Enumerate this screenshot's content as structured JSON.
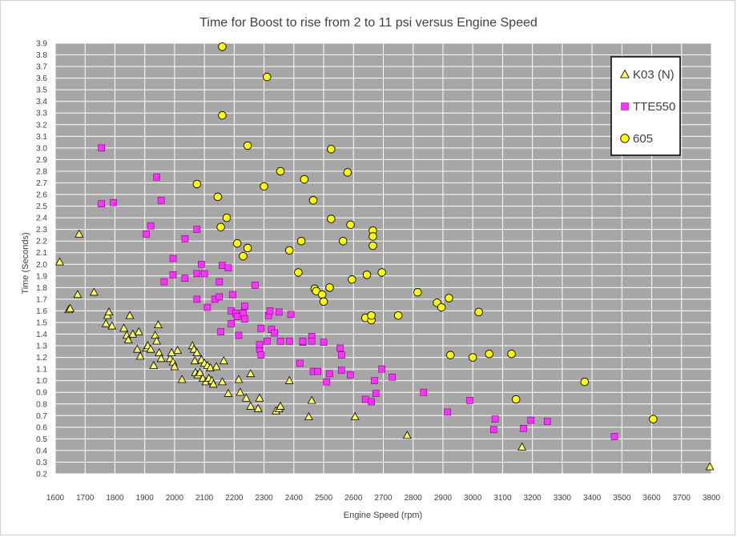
{
  "chart_data": {
    "type": "scatter",
    "title": "Time for Boost to rise from 2 to 11 psi versus Engine Speed",
    "xlabel": "Engine Speed (rpm)",
    "ylabel": "Time (Seconds)",
    "xlim": [
      1600,
      3800
    ],
    "ylim": [
      0.2,
      3.9
    ],
    "xtick_step": 100,
    "ytick_step": 0.1,
    "grid": true,
    "legend_position": "top-right",
    "colors": {
      "plot_background": "#a6a6a6",
      "grid": "#ffffff",
      "marker_outline": "#000000"
    },
    "series": [
      {
        "name": "K03 (N)",
        "marker": "triangle",
        "color": "#ffff66",
        "points": [
          [
            1615,
            2.02
          ],
          [
            1645,
            1.61
          ],
          [
            1650,
            1.62
          ],
          [
            1675,
            1.74
          ],
          [
            1680,
            2.26
          ],
          [
            1730,
            1.76
          ],
          [
            1770,
            1.49
          ],
          [
            1775,
            1.56
          ],
          [
            1780,
            1.59
          ],
          [
            1790,
            1.47
          ],
          [
            1830,
            1.45
          ],
          [
            1840,
            1.39
          ],
          [
            1845,
            1.35
          ],
          [
            1850,
            1.56
          ],
          [
            1860,
            1.4
          ],
          [
            1875,
            1.27
          ],
          [
            1880,
            1.42
          ],
          [
            1885,
            1.21
          ],
          [
            1905,
            1.28
          ],
          [
            1910,
            1.3
          ],
          [
            1920,
            1.27
          ],
          [
            1930,
            1.13
          ],
          [
            1935,
            1.39
          ],
          [
            1940,
            1.34
          ],
          [
            1945,
            1.48
          ],
          [
            1948,
            1.24
          ],
          [
            1955,
            1.19
          ],
          [
            1985,
            1.19
          ],
          [
            1990,
            1.24
          ],
          [
            1995,
            1.16
          ],
          [
            2000,
            1.12
          ],
          [
            2010,
            1.26
          ],
          [
            2025,
            1.01
          ],
          [
            2060,
            1.3
          ],
          [
            2065,
            1.27
          ],
          [
            2068,
            1.17
          ],
          [
            2070,
            1.07
          ],
          [
            2075,
            1.24
          ],
          [
            2078,
            1.05
          ],
          [
            2085,
            1.07
          ],
          [
            2090,
            1.18
          ],
          [
            2095,
            1.02
          ],
          [
            2100,
            1.15
          ],
          [
            2105,
            0.99
          ],
          [
            2110,
            1.13
          ],
          [
            2115,
            1.02
          ],
          [
            2120,
            1.11
          ],
          [
            2125,
            1.0
          ],
          [
            2130,
            0.97
          ],
          [
            2140,
            1.12
          ],
          [
            2160,
            0.99
          ],
          [
            2165,
            1.17
          ],
          [
            2180,
            0.89
          ],
          [
            2215,
            1.01
          ],
          [
            2220,
            0.9
          ],
          [
            2240,
            0.85
          ],
          [
            2255,
            1.06
          ],
          [
            2255,
            0.78
          ],
          [
            2280,
            0.76
          ],
          [
            2285,
            0.85
          ],
          [
            2340,
            0.74
          ],
          [
            2350,
            0.76
          ],
          [
            2355,
            0.78
          ],
          [
            2385,
            1.0
          ],
          [
            2450,
            0.69
          ],
          [
            2460,
            0.83
          ],
          [
            2605,
            0.69
          ],
          [
            2780,
            0.53
          ],
          [
            3165,
            0.43
          ],
          [
            3795,
            0.26
          ]
        ]
      },
      {
        "name": "TTE550",
        "marker": "square",
        "color": "#ff33ff",
        "points": [
          [
            1755,
            3.0
          ],
          [
            1755,
            2.52
          ],
          [
            1795,
            2.53
          ],
          [
            1905,
            2.26
          ],
          [
            1920,
            2.33
          ],
          [
            1940,
            2.75
          ],
          [
            1955,
            2.55
          ],
          [
            1965,
            1.85
          ],
          [
            1995,
            1.91
          ],
          [
            1995,
            2.05
          ],
          [
            2035,
            2.22
          ],
          [
            2035,
            1.88
          ],
          [
            2075,
            2.3
          ],
          [
            2075,
            1.92
          ],
          [
            2075,
            1.7
          ],
          [
            2090,
            2.0
          ],
          [
            2100,
            1.92
          ],
          [
            2110,
            1.63
          ],
          [
            2135,
            1.7
          ],
          [
            2150,
            1.72
          ],
          [
            2150,
            1.85
          ],
          [
            2155,
            1.42
          ],
          [
            2160,
            1.99
          ],
          [
            2180,
            1.97
          ],
          [
            2190,
            1.6
          ],
          [
            2190,
            1.49
          ],
          [
            2195,
            1.74
          ],
          [
            2205,
            1.58
          ],
          [
            2210,
            1.55
          ],
          [
            2215,
            1.39
          ],
          [
            2230,
            1.58
          ],
          [
            2235,
            1.64
          ],
          [
            2235,
            1.53
          ],
          [
            2270,
            1.82
          ],
          [
            2285,
            1.27
          ],
          [
            2285,
            1.31
          ],
          [
            2290,
            1.45
          ],
          [
            2290,
            1.22
          ],
          [
            2310,
            1.34
          ],
          [
            2315,
            1.56
          ],
          [
            2320,
            1.6
          ],
          [
            2325,
            1.44
          ],
          [
            2335,
            1.41
          ],
          [
            2350,
            1.59
          ],
          [
            2355,
            1.34
          ],
          [
            2385,
            1.34
          ],
          [
            2390,
            1.57
          ],
          [
            2420,
            1.15
          ],
          [
            2430,
            1.33
          ],
          [
            2430,
            1.34
          ],
          [
            2460,
            1.38
          ],
          [
            2460,
            1.34
          ],
          [
            2465,
            1.08
          ],
          [
            2480,
            1.08
          ],
          [
            2500,
            1.33
          ],
          [
            2510,
            0.99
          ],
          [
            2520,
            1.06
          ],
          [
            2555,
            1.28
          ],
          [
            2560,
            1.22
          ],
          [
            2560,
            1.09
          ],
          [
            2590,
            1.05
          ],
          [
            2640,
            0.84
          ],
          [
            2660,
            0.82
          ],
          [
            2670,
            1.0
          ],
          [
            2675,
            0.89
          ],
          [
            2695,
            1.1
          ],
          [
            2730,
            1.03
          ],
          [
            2835,
            0.9
          ],
          [
            2915,
            0.73
          ],
          [
            2990,
            0.83
          ],
          [
            3070,
            0.58
          ],
          [
            3075,
            0.67
          ],
          [
            3170,
            0.59
          ],
          [
            3195,
            0.66
          ],
          [
            3250,
            0.65
          ],
          [
            3475,
            0.52
          ]
        ]
      },
      {
        "name": "605",
        "marker": "circle",
        "color": "#ffff00",
        "points": [
          [
            2160,
            3.87
          ],
          [
            2310,
            3.61
          ],
          [
            2160,
            3.28
          ],
          [
            2245,
            3.02
          ],
          [
            2525,
            2.99
          ],
          [
            2355,
            2.8
          ],
          [
            2580,
            2.79
          ],
          [
            2435,
            2.73
          ],
          [
            2075,
            2.69
          ],
          [
            2300,
            2.67
          ],
          [
            2145,
            2.58
          ],
          [
            2465,
            2.55
          ],
          [
            2175,
            2.4
          ],
          [
            2525,
            2.39
          ],
          [
            2155,
            2.32
          ],
          [
            2590,
            2.34
          ],
          [
            2665,
            2.29
          ],
          [
            2665,
            2.24
          ],
          [
            2210,
            2.18
          ],
          [
            2245,
            2.14
          ],
          [
            2565,
            2.2
          ],
          [
            2425,
            2.2
          ],
          [
            2385,
            2.12
          ],
          [
            2665,
            2.16
          ],
          [
            2230,
            2.07
          ],
          [
            2415,
            1.93
          ],
          [
            2645,
            1.91
          ],
          [
            2695,
            1.93
          ],
          [
            2595,
            1.87
          ],
          [
            2470,
            1.79
          ],
          [
            2475,
            1.77
          ],
          [
            2520,
            1.8
          ],
          [
            2495,
            1.74
          ],
          [
            2500,
            1.68
          ],
          [
            2815,
            1.76
          ],
          [
            2920,
            1.71
          ],
          [
            2880,
            1.67
          ],
          [
            2895,
            1.63
          ],
          [
            3020,
            1.59
          ],
          [
            2640,
            1.54
          ],
          [
            2660,
            1.52
          ],
          [
            2660,
            1.56
          ],
          [
            2750,
            1.56
          ],
          [
            2925,
            1.22
          ],
          [
            3000,
            1.2
          ],
          [
            3055,
            1.23
          ],
          [
            3130,
            1.23
          ],
          [
            3145,
            0.84
          ],
          [
            3375,
            0.99
          ],
          [
            3605,
            0.67
          ]
        ]
      }
    ]
  }
}
